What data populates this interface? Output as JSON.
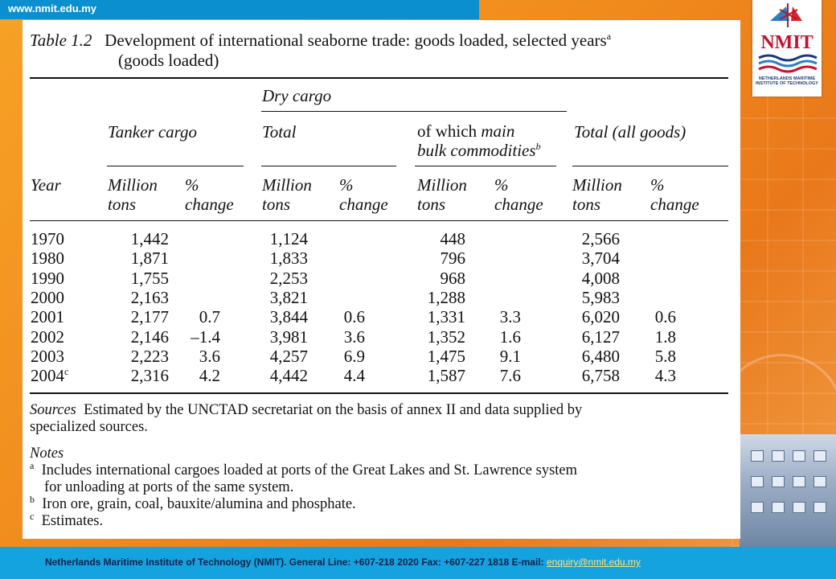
{
  "site": {
    "url": "www.nmit.edu.my"
  },
  "logo": {
    "word": "NMIT",
    "subtitle": "NETHERLANDS MARITIME INSTITUTE OF TECHNOLOGY"
  },
  "table": {
    "label": "Table 1.2",
    "title_line1": "Development of international seaborne trade: goods loaded, selected years",
    "title_sup": "a",
    "title_line2": "(goods loaded)",
    "group_dry": "Dry cargo",
    "col_tanker": "Tanker cargo",
    "col_total": "Total",
    "col_bulk_line1_a": "of which ",
    "col_bulk_line1_b": "main",
    "col_bulk_line2": "bulk commodities",
    "col_bulk_sup": "b",
    "col_allgoods": "Total (all goods)",
    "col_year": "Year",
    "sub_million_1": "Million",
    "sub_million_2": "tons",
    "sub_change_1": "%",
    "sub_change_2": "change",
    "rows": [
      {
        "year": "1970",
        "year_sup": "",
        "tanker": "1,442",
        "tanker_pct": "",
        "total": "1,124",
        "total_pct": "",
        "bulk": "448",
        "bulk_pct": "",
        "all": "2,566",
        "all_pct": ""
      },
      {
        "year": "1980",
        "year_sup": "",
        "tanker": "1,871",
        "tanker_pct": "",
        "total": "1,833",
        "total_pct": "",
        "bulk": "796",
        "bulk_pct": "",
        "all": "3,704",
        "all_pct": ""
      },
      {
        "year": "1990",
        "year_sup": "",
        "tanker": "1,755",
        "tanker_pct": "",
        "total": "2,253",
        "total_pct": "",
        "bulk": "968",
        "bulk_pct": "",
        "all": "4,008",
        "all_pct": ""
      },
      {
        "year": "2000",
        "year_sup": "",
        "tanker": "2,163",
        "tanker_pct": "",
        "total": "3,821",
        "total_pct": "",
        "bulk": "1,288",
        "bulk_pct": "",
        "all": "5,983",
        "all_pct": ""
      },
      {
        "year": "2001",
        "year_sup": "",
        "tanker": "2,177",
        "tanker_pct": "0.7",
        "total": "3,844",
        "total_pct": "0.6",
        "bulk": "1,331",
        "bulk_pct": "3.3",
        "all": "6,020",
        "all_pct": "0.6"
      },
      {
        "year": "2002",
        "year_sup": "",
        "tanker": "2,146",
        "tanker_pct": "–1.4",
        "total": "3,981",
        "total_pct": "3.6",
        "bulk": "1,352",
        "bulk_pct": "1.6",
        "all": "6,127",
        "all_pct": "1.8"
      },
      {
        "year": "2003",
        "year_sup": "",
        "tanker": "2,223",
        "tanker_pct": "3.6",
        "total": "4,257",
        "total_pct": "6.9",
        "bulk": "1,475",
        "bulk_pct": "9.1",
        "all": "6,480",
        "all_pct": "5.8"
      },
      {
        "year": "2004",
        "year_sup": "c",
        "tanker": "2,316",
        "tanker_pct": "4.2",
        "total": "4,442",
        "total_pct": "4.4",
        "bulk": "1,587",
        "bulk_pct": "7.6",
        "all": "6,758",
        "all_pct": "4.3"
      }
    ],
    "sources_label": "Sources",
    "sources_line1": "Estimated by the UNCTAD secretariat on the basis of annex II and data supplied by",
    "sources_line2": "specialized sources.",
    "notes_label": "Notes",
    "note_a_mark": "a",
    "note_a_line1": "Includes international cargoes loaded at ports of the Great Lakes and St. Lawrence system",
    "note_a_line2": "for unloading at ports of the same system.",
    "note_b_mark": "b",
    "note_b": "Iron ore, grain, coal, bauxite/alumina and phosphate.",
    "note_c_mark": "c",
    "note_c": "Estimates."
  },
  "footer": {
    "text": "Netherlands Maritime Institute of Technology (NMIT).   General Line: +607-218 2020   Fax: +607-227 1818    E-mail: ",
    "email": "enquiry@nmit.edu.my"
  }
}
